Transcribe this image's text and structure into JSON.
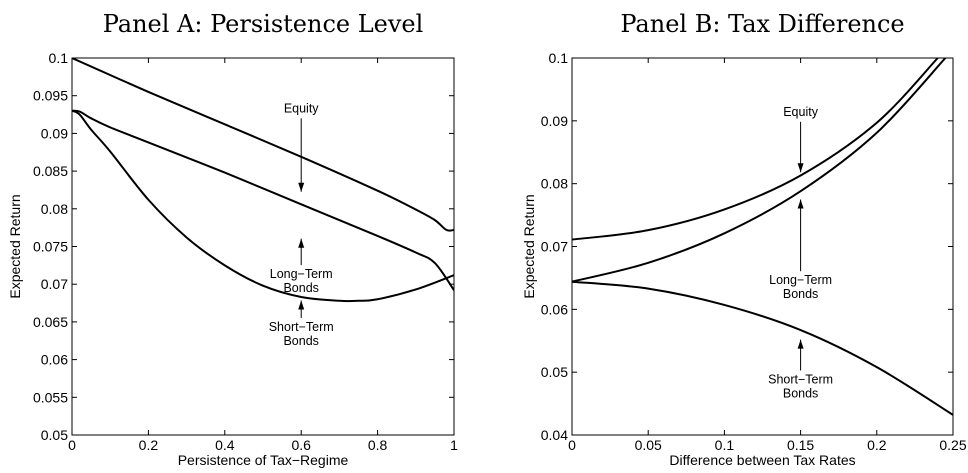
{
  "chart_data": [
    {
      "type": "line",
      "title": "Panel A: Persistence Level",
      "xlabel": "Persistence of Tax−Regime",
      "ylabel": "Expected Return",
      "xlim": [
        0,
        1
      ],
      "ylim": [
        0.05,
        0.1
      ],
      "xticks": [
        "0",
        "0.2",
        "0.4",
        "0.6",
        "0.8",
        "1"
      ],
      "yticks": [
        "0.05",
        "0.055",
        "0.06",
        "0.065",
        "0.07",
        "0.075",
        "0.08",
        "0.085",
        "0.09",
        "0.095",
        "0.1"
      ],
      "grid": false,
      "series": [
        {
          "key": "equity",
          "x": [
            0,
            0.2,
            0.4,
            0.6,
            0.8,
            0.9,
            0.95,
            0.98,
            1
          ],
          "y": [
            0.1,
            0.0955,
            0.0912,
            0.0869,
            0.0824,
            0.0799,
            0.0785,
            0.0772,
            0.0772
          ],
          "label_lines": [
            "Equity"
          ],
          "label_at": [
            0.6,
            0.0928
          ],
          "arrow_to": [
            0.6,
            0.082
          ]
        },
        {
          "key": "long",
          "x": [
            0,
            0.02,
            0.05,
            0.1,
            0.2,
            0.4,
            0.6,
            0.8,
            0.9,
            0.95,
            1
          ],
          "y": [
            0.093,
            0.0929,
            0.092,
            0.0908,
            0.0888,
            0.0848,
            0.0806,
            0.0764,
            0.0742,
            0.0728,
            0.0692
          ],
          "label_lines": [
            "Long−Term",
            "Bonds"
          ],
          "label_at": [
            0.6,
            0.0708
          ],
          "arrow_to": [
            0.6,
            0.0763
          ]
        },
        {
          "key": "short",
          "x": [
            0,
            0.02,
            0.05,
            0.1,
            0.2,
            0.3,
            0.4,
            0.5,
            0.6,
            0.7,
            0.75,
            0.8,
            0.9,
            1
          ],
          "y": [
            0.093,
            0.0925,
            0.0905,
            0.0876,
            0.0812,
            0.0762,
            0.0725,
            0.0698,
            0.0683,
            0.0678,
            0.0678,
            0.068,
            0.0693,
            0.0712
          ],
          "label_lines": [
            "Short−Term",
            "Bonds"
          ],
          "label_at": [
            0.6,
            0.0638
          ],
          "arrow_to": [
            0.6,
            0.0681
          ]
        }
      ]
    },
    {
      "type": "line",
      "title": "Panel B: Tax Difference",
      "xlabel": "Difference between Tax Rates",
      "ylabel": "Expected Return",
      "xlim": [
        0,
        0.25
      ],
      "ylim": [
        0.04,
        0.1
      ],
      "xticks": [
        "0",
        "0.05",
        "0.1",
        "0.15",
        "0.2",
        "0.25"
      ],
      "yticks": [
        "0.04",
        "0.05",
        "0.06",
        "0.07",
        "0.08",
        "0.09",
        "0.1"
      ],
      "grid": false,
      "series": [
        {
          "key": "equity",
          "x": [
            0,
            0.05,
            0.1,
            0.15,
            0.2,
            0.24
          ],
          "y": [
            0.0711,
            0.0726,
            0.0759,
            0.0813,
            0.0897,
            0.1
          ],
          "label_lines": [
            "Equity"
          ],
          "label_at": [
            0.15,
            0.0908
          ],
          "arrow_to": [
            0.15,
            0.0815
          ]
        },
        {
          "key": "long",
          "x": [
            0,
            0.05,
            0.1,
            0.15,
            0.2,
            0.245
          ],
          "y": [
            0.0644,
            0.0674,
            0.0721,
            0.0788,
            0.0881,
            0.1
          ],
          "label_lines": [
            "Long−Term",
            "Bonds"
          ],
          "label_at": [
            0.15,
            0.064
          ],
          "arrow_to": [
            0.15,
            0.0778
          ]
        },
        {
          "key": "short",
          "x": [
            0,
            0.05,
            0.1,
            0.15,
            0.2,
            0.25
          ],
          "y": [
            0.0644,
            0.0633,
            0.0607,
            0.0567,
            0.0508,
            0.0432
          ],
          "label_lines": [
            "Short−Term",
            "Bonds"
          ],
          "label_at": [
            0.15,
            0.0482
          ],
          "arrow_to": [
            0.15,
            0.0555
          ]
        }
      ]
    }
  ]
}
